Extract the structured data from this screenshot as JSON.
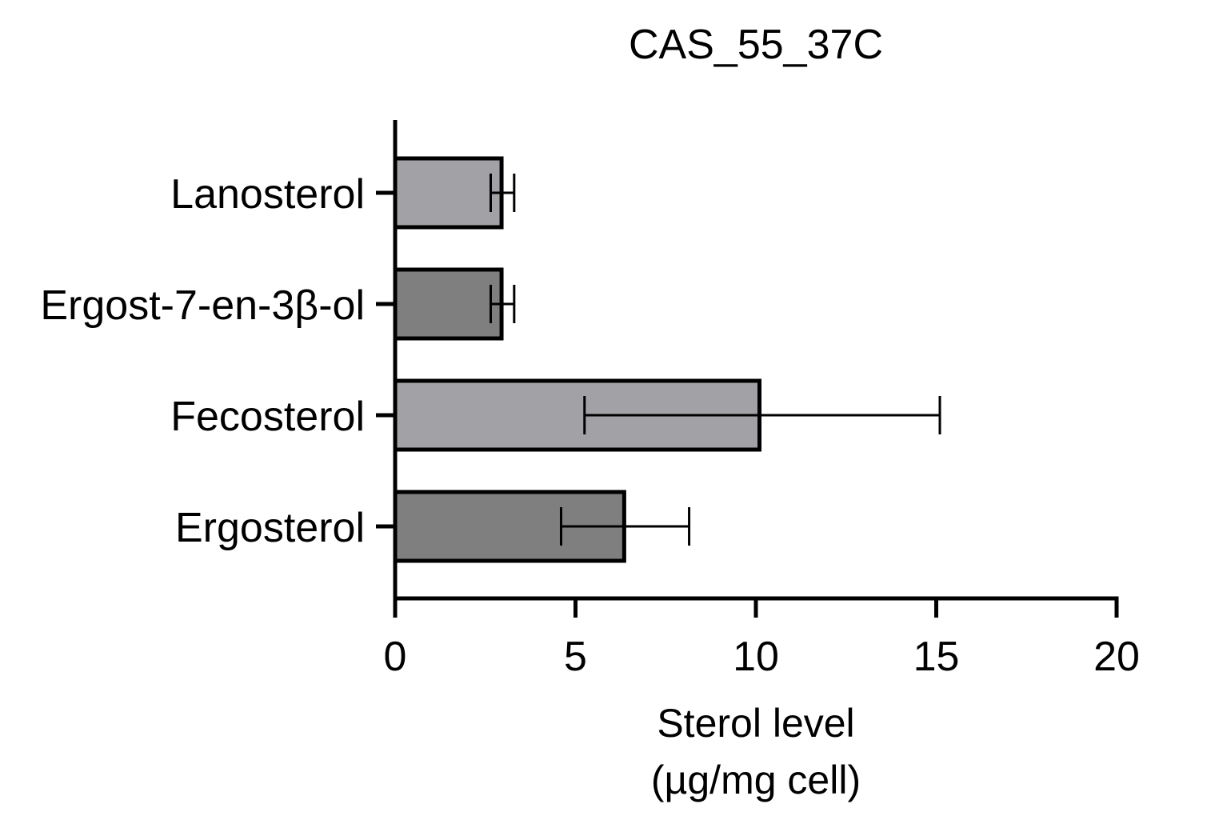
{
  "chart_data": {
    "type": "bar",
    "orientation": "horizontal",
    "title": "CAS_55_37C",
    "xlabel_lines": [
      "Sterol level",
      "(µg/mg cell)"
    ],
    "ylabel": "",
    "categories": [
      "Lanosterol",
      "Ergost-7-en-3β-ol",
      "Fecosterol",
      "Ergosterol"
    ],
    "values": [
      2.95,
      2.95,
      10.1,
      6.35
    ],
    "error_low": [
      2.65,
      2.65,
      5.25,
      4.6
    ],
    "error_high": [
      3.3,
      3.3,
      15.1,
      8.15
    ],
    "bar_colors": [
      "#a2a1a5",
      "#7f7f7f",
      "#a2a1a5",
      "#7f7f7f"
    ],
    "xlim": [
      0,
      20
    ],
    "xticks": [
      0,
      5,
      10,
      15,
      20
    ],
    "xtick_labels": [
      "0",
      "5",
      "10",
      "15",
      "20"
    ],
    "grid": false,
    "legend": "none"
  }
}
